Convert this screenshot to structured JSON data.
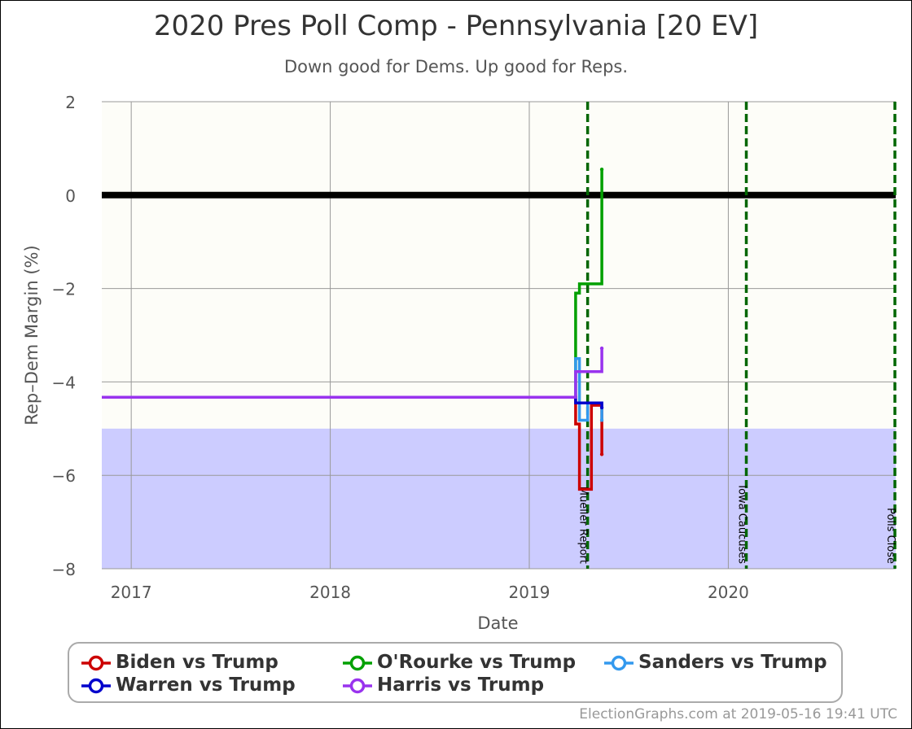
{
  "header": {
    "title": "2020 Pres Poll Comp - Pennsylvania [20 EV]",
    "subtitle": "Down good for Dems. Up good for Reps."
  },
  "footer": {
    "credit": "ElectionGraphs.com at 2019-05-16 19:41 UTC"
  },
  "chart_data": {
    "type": "line",
    "title": "2020 Pres Poll Comp - Pennsylvania [20 EV]",
    "subtitle": "Down good for Dems. Up good for Reps.",
    "xlabel": "Date",
    "ylabel": "Rep-Dem Margin (%)",
    "xlim": [
      "2016-11-08",
      "2020-11-03"
    ],
    "ylim": [
      -8,
      2
    ],
    "x_ticks": [
      {
        "date": "2017-01-01",
        "label": "2017"
      },
      {
        "date": "2018-01-01",
        "label": "2018"
      },
      {
        "date": "2019-01-01",
        "label": "2019"
      },
      {
        "date": "2020-01-01",
        "label": "2020"
      }
    ],
    "y_ticks": [
      -8,
      -6,
      -4,
      -2,
      0,
      2
    ],
    "grid": true,
    "zero_line": 0,
    "shaded_band": {
      "from": -8,
      "to": -5,
      "color": "#ccccff"
    },
    "events": [
      {
        "date": "2019-04-18",
        "label": "Mueller Report"
      },
      {
        "date": "2020-02-03",
        "label": "Iowa Caucuses"
      },
      {
        "date": "2020-11-03",
        "label": "Polls Close"
      }
    ],
    "series": [
      {
        "name": "Biden vs Trump",
        "color": "#cc0000",
        "points": [
          [
            "2016-11-08",
            -4.33
          ],
          [
            "2019-03-27",
            -4.33
          ],
          [
            "2019-03-27",
            -4.9
          ],
          [
            "2019-04-03",
            -4.9
          ],
          [
            "2019-04-03",
            -6.3
          ],
          [
            "2019-04-25",
            -6.3
          ],
          [
            "2019-04-25",
            -4.5
          ],
          [
            "2019-05-14",
            -4.5
          ],
          [
            "2019-05-14",
            -5.55
          ]
        ]
      },
      {
        "name": "O'Rourke vs Trump",
        "color": "#00a000",
        "points": [
          [
            "2016-11-08",
            -4.33
          ],
          [
            "2019-03-27",
            -4.33
          ],
          [
            "2019-03-27",
            -2.1
          ],
          [
            "2019-04-03",
            -2.1
          ],
          [
            "2019-04-03",
            -1.9
          ],
          [
            "2019-05-14",
            -1.9
          ],
          [
            "2019-05-14",
            0.55
          ]
        ]
      },
      {
        "name": "Sanders vs Trump",
        "color": "#3399ee",
        "points": [
          [
            "2016-11-08",
            -4.33
          ],
          [
            "2019-03-27",
            -4.33
          ],
          [
            "2019-03-27",
            -3.5
          ],
          [
            "2019-04-03",
            -3.5
          ],
          [
            "2019-04-03",
            -4.82
          ],
          [
            "2019-04-18",
            -4.82
          ],
          [
            "2019-04-18",
            -4.45
          ],
          [
            "2019-05-14",
            -4.45
          ],
          [
            "2019-05-14",
            -4.82
          ]
        ]
      },
      {
        "name": "Warren vs Trump",
        "color": "#0000cc",
        "points": [
          [
            "2016-11-08",
            -4.33
          ],
          [
            "2019-03-27",
            -4.33
          ],
          [
            "2019-03-27",
            -4.45
          ],
          [
            "2019-05-14",
            -4.45
          ],
          [
            "2019-05-14",
            -4.55
          ]
        ]
      },
      {
        "name": "Harris vs Trump",
        "color": "#9933ee",
        "points": [
          [
            "2016-11-08",
            -4.33
          ],
          [
            "2019-03-27",
            -4.33
          ],
          [
            "2019-03-27",
            -3.78
          ],
          [
            "2019-05-14",
            -3.78
          ],
          [
            "2019-05-14",
            -3.28
          ]
        ]
      }
    ]
  }
}
